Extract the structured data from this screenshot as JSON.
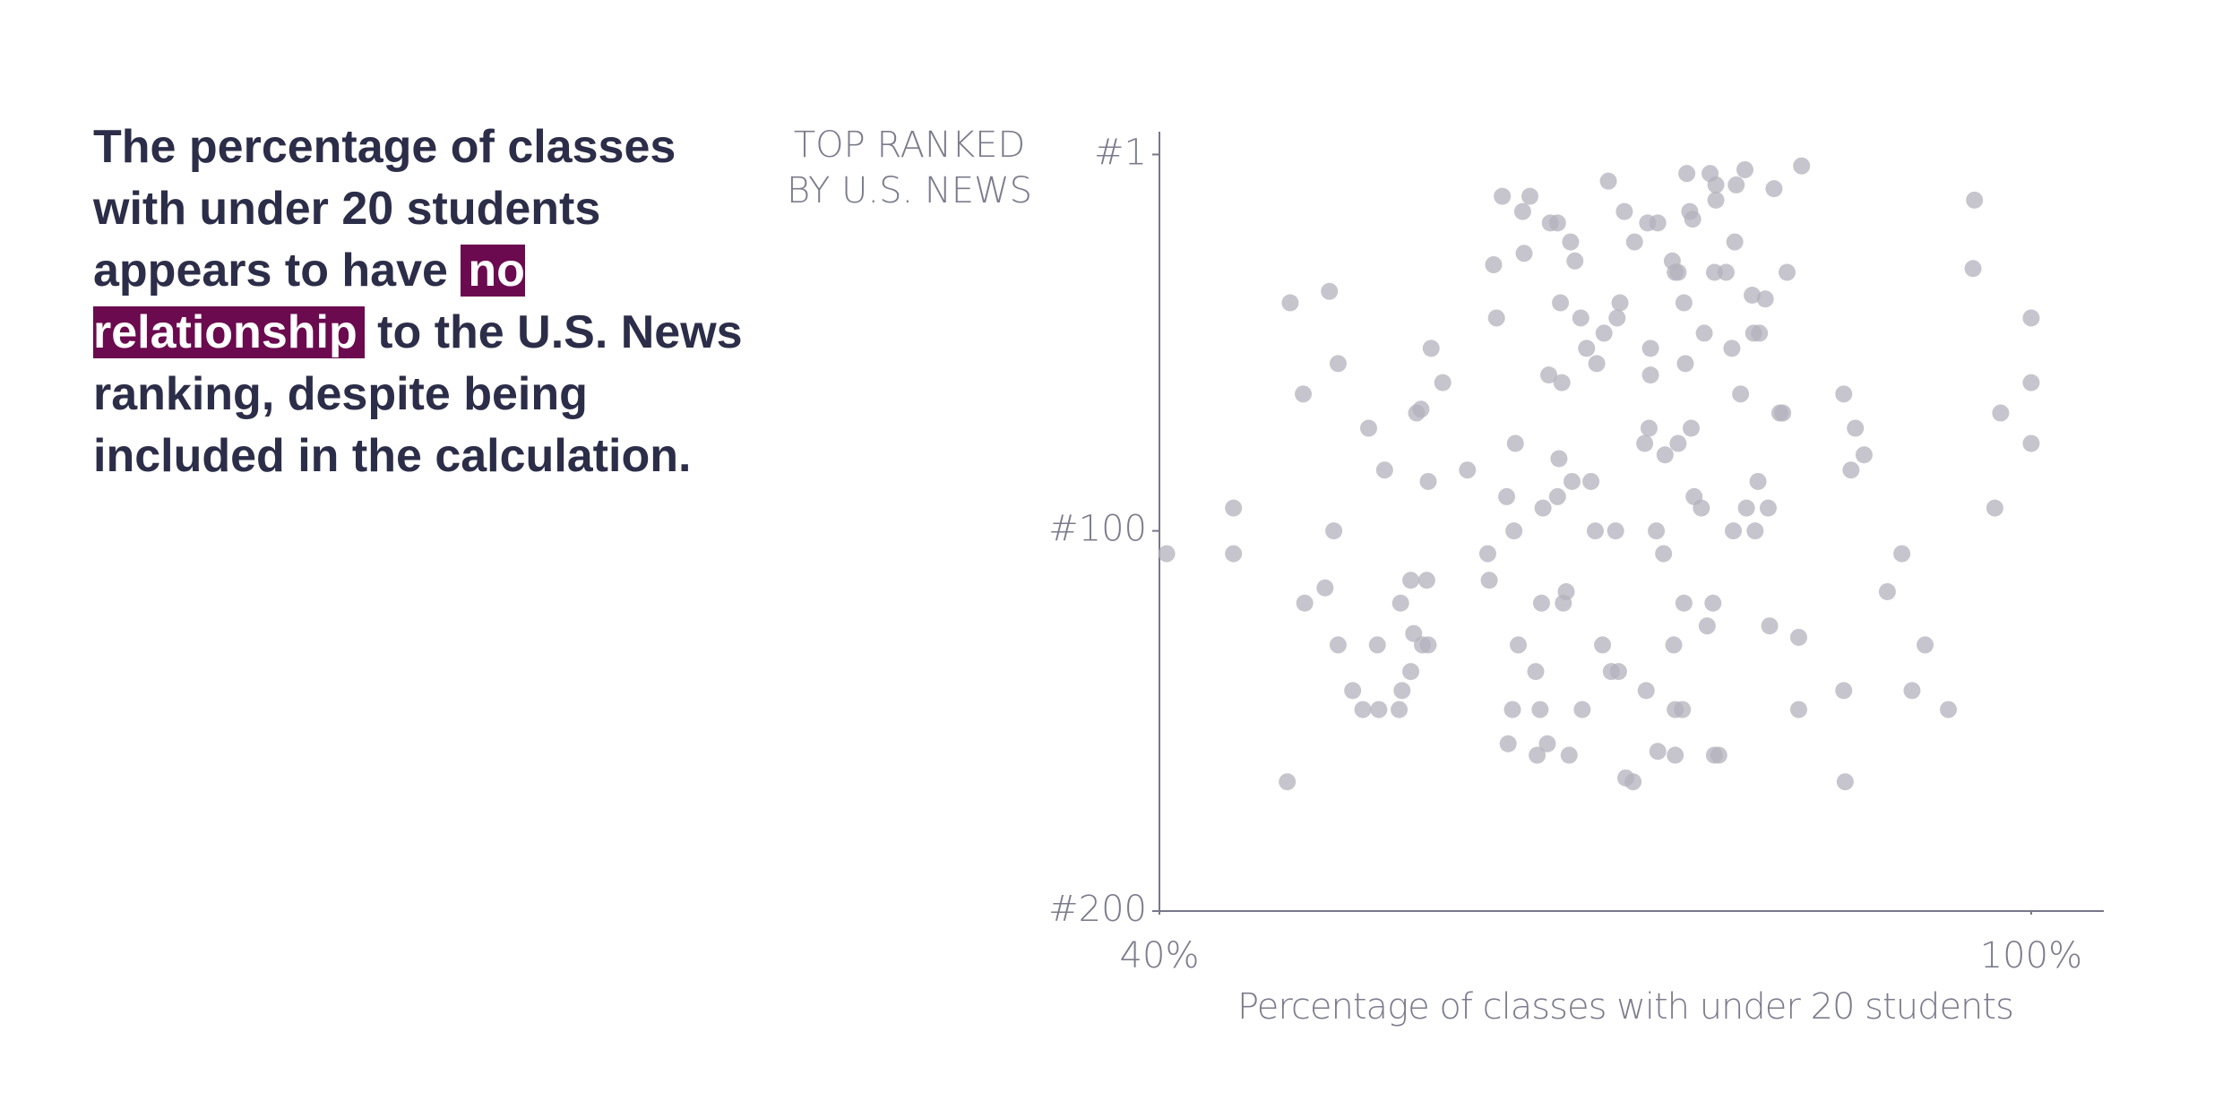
{
  "headline": {
    "before": "The percentage of classes with under 20 students appears to have",
    "highlight": "no relationship",
    "after": "to the U.S. News ranking, despite being included in the calculation."
  },
  "chart_data": {
    "type": "scatter",
    "y_label": [
      "TOP RANKED",
      "BY U.S. NEWS"
    ],
    "x_label": "Percentage of classes with under 20 students",
    "color": "#b3b1bc",
    "xlim": [
      40,
      105
    ],
    "ylim": [
      200,
      -5
    ],
    "xticks": [
      {
        "value": 40,
        "label": "40%"
      },
      {
        "value": 100,
        "label": "100%"
      }
    ],
    "yticks": [
      {
        "value": 1,
        "label": "#1"
      },
      {
        "value": 100,
        "label": "#100"
      },
      {
        "value": 200,
        "label": "#200"
      }
    ],
    "x": [
      40.5,
      45.1,
      45.1,
      48.8,
      49.0,
      49.9,
      50.0,
      51.4,
      51.7,
      52.0,
      52.3,
      52.3,
      53.3,
      54.0,
      54.4,
      55.0,
      55.1,
      55.5,
      56.5,
      56.6,
      56.7,
      57.3,
      57.3,
      57.5,
      57.7,
      58.0,
      58.1,
      58.4,
      58.5,
      58.5,
      58.7,
      59.5,
      61.2,
      62.6,
      62.7,
      63.0,
      63.2,
      63.6,
      63.9,
      64.0,
      64.3,
      64.4,
      64.5,
      64.7,
      65.0,
      65.1,
      65.5,
      65.9,
      66.0,
      66.2,
      66.3,
      66.4,
      66.7,
      66.8,
      66.9,
      67.4,
      67.4,
      67.5,
      67.6,
      67.7,
      67.8,
      68.0,
      68.2,
      68.3,
      68.4,
      68.6,
      69.0,
      69.1,
      69.4,
      69.7,
      70.0,
      70.1,
      70.5,
      70.6,
      70.9,
      71.1,
      71.4,
      71.5,
      71.6,
      71.7,
      72.0,
      72.1,
      72.6,
      72.7,
      73.4,
      73.5,
      73.6,
      73.7,
      73.8,
      73.8,
      74.2,
      74.3,
      74.3,
      74.7,
      74.8,
      75.3,
      75.4,
      75.5,
      75.5,
      75.5,
      75.7,
      75.7,
      76.0,
      76.1,
      76.1,
      76.2,
      76.3,
      76.5,
      76.6,
      76.7,
      76.8,
      77.3,
      77.5,
      77.7,
      77.9,
      78.1,
      78.2,
      78.2,
      78.3,
      78.3,
      78.5,
      79.0,
      79.4,
      79.5,
      79.6,
      79.7,
      80.0,
      80.3,
      80.4,
      80.8,
      80.9,
      81.0,
      81.2,
      81.3,
      81.7,
      81.9,
      82.0,
      82.3,
      82.7,
      82.9,
      83.2,
      84.0,
      84.0,
      84.2,
      87.1,
      87.1,
      87.2,
      87.6,
      87.9,
      88.5,
      90.1,
      91.1,
      91.8,
      92.7,
      94.3,
      96.0,
      96.1,
      97.5,
      97.9,
      100.0,
      100.0,
      100.0
    ],
    "y": [
      106,
      94,
      106,
      166,
      40,
      64,
      119,
      115,
      37,
      100,
      56,
      130,
      142,
      147,
      73,
      130,
      147,
      84,
      147,
      119,
      142,
      113,
      137,
      127,
      69,
      68,
      130,
      113,
      130,
      87,
      52,
      61,
      84,
      106,
      113,
      30,
      44,
      12,
      91,
      156,
      147,
      100,
      77,
      130,
      16,
      27,
      12,
      137,
      159,
      147,
      119,
      94,
      156,
      59,
      19,
      19,
      91,
      81,
      40,
      61,
      119,
      116,
      159,
      24,
      87,
      29,
      44,
      147,
      52,
      87,
      100,
      56,
      130,
      48,
      8,
      137,
      100,
      44,
      137,
      40,
      16,
      165,
      166,
      24,
      77,
      142,
      19,
      73,
      59,
      52,
      100,
      158,
      19,
      106,
      80,
      29,
      130,
      147,
      159,
      32,
      77,
      32,
      147,
      40,
      119,
      56,
      6,
      16,
      73,
      18,
      91,
      94,
      48,
      125,
      6,
      119,
      159,
      32,
      9,
      13,
      159,
      32,
      52,
      100,
      24,
      9,
      64,
      5,
      94,
      38,
      48,
      100,
      87,
      48,
      39,
      94,
      125,
      10,
      69,
      69,
      32,
      128,
      147,
      4,
      64,
      142,
      166,
      84,
      73,
      80,
      116,
      106,
      142,
      130,
      147,
      31,
      13,
      94,
      69,
      44,
      61,
      77
    ]
  }
}
